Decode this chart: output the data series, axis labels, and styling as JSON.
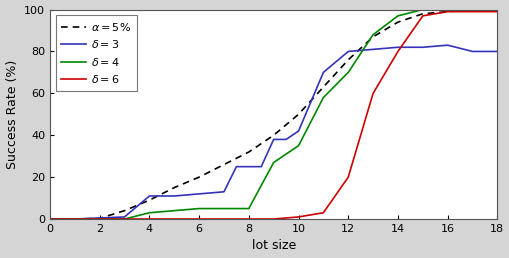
{
  "title": "",
  "xlabel": "lot size",
  "ylabel": "Success Rate (%)",
  "xlim": [
    0,
    18
  ],
  "ylim": [
    0,
    100
  ],
  "xticks": [
    0,
    2,
    4,
    6,
    8,
    10,
    12,
    14,
    16,
    18
  ],
  "yticks": [
    0,
    20,
    40,
    60,
    80,
    100
  ],
  "fig_bg_color": "#d5d5d5",
  "axes_bg_color": "#ffffff",
  "alpha_x": [
    0,
    1,
    2,
    3,
    4,
    5,
    6,
    7,
    8,
    9,
    10,
    11,
    12,
    13,
    14,
    15,
    16,
    17,
    18
  ],
  "alpha_y": [
    0,
    0,
    0.3,
    4,
    9,
    15,
    20,
    26,
    32,
    40,
    50,
    63,
    76,
    87,
    94,
    98,
    99,
    100,
    100
  ],
  "blue_x": [
    0,
    1,
    2,
    3,
    4,
    4.5,
    5,
    6,
    7,
    7.5,
    8,
    8.5,
    9,
    9.5,
    10,
    11,
    12,
    13,
    14,
    15,
    16,
    17,
    18
  ],
  "blue_y": [
    0,
    0,
    0.5,
    1,
    11,
    11,
    11,
    12,
    13,
    25,
    25,
    25,
    38,
    38,
    42,
    70,
    80,
    81,
    82,
    82,
    83,
    80,
    80
  ],
  "green_x": [
    0,
    1,
    2,
    3,
    4,
    5,
    6,
    7,
    8,
    9,
    10,
    11,
    12,
    13,
    14,
    15,
    16,
    17,
    18
  ],
  "green_y": [
    0,
    0,
    0,
    0,
    3,
    4,
    5,
    5,
    5,
    27,
    35,
    58,
    70,
    88,
    97,
    100,
    100,
    100,
    100
  ],
  "red_x": [
    0,
    1,
    2,
    3,
    4,
    5,
    6,
    7,
    8,
    9,
    10,
    10.5,
    11,
    12,
    13,
    14,
    15,
    16,
    17,
    18
  ],
  "red_y": [
    0,
    0,
    0,
    0,
    0,
    0,
    0,
    0,
    0,
    0,
    1,
    2,
    3,
    20,
    60,
    80,
    97,
    99,
    99,
    99
  ],
  "alpha_color": "#000000",
  "blue_color": "#3333bb",
  "green_color": "#008800",
  "red_color": "#cc0000",
  "linewidth": 1.2,
  "spine_color": "#555555",
  "tick_color": "#000000",
  "tick_labelsize": 8,
  "label_fontsize": 9,
  "legend_fontsize": 8
}
